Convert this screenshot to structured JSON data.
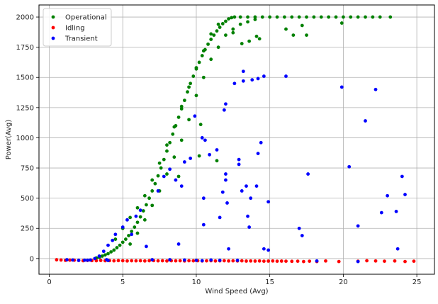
{
  "chart_data": {
    "type": "scatter",
    "title": "",
    "xlabel": "Wind Speed (Avg)",
    "ylabel": "Power(Avg)",
    "xlim": [
      -0.7,
      26.2
    ],
    "ylim": [
      -130,
      2100
    ],
    "xticks": [
      0,
      5,
      10,
      15,
      20,
      25
    ],
    "yticks": [
      0,
      250,
      500,
      750,
      1000,
      1250,
      1500,
      1750,
      2000
    ],
    "grid": true,
    "legend_position": "top-left",
    "series": [
      {
        "name": "Operational",
        "color": "#008000",
        "points": [
          [
            3.2,
            5
          ],
          [
            3.4,
            10
          ],
          [
            3.6,
            20
          ],
          [
            3.8,
            30
          ],
          [
            4.0,
            40
          ],
          [
            4.2,
            55
          ],
          [
            4.4,
            70
          ],
          [
            4.6,
            90
          ],
          [
            4.8,
            110
          ],
          [
            5.0,
            135
          ],
          [
            5.2,
            160
          ],
          [
            5.4,
            190
          ],
          [
            5.6,
            225
          ],
          [
            5.8,
            260
          ],
          [
            6.0,
            300
          ],
          [
            6.2,
            345
          ],
          [
            6.4,
            395
          ],
          [
            6.6,
            445
          ],
          [
            6.8,
            500
          ],
          [
            7.0,
            560
          ],
          [
            7.2,
            620
          ],
          [
            7.4,
            685
          ],
          [
            7.6,
            750
          ],
          [
            7.8,
            820
          ],
          [
            8.0,
            890
          ],
          [
            8.2,
            960
          ],
          [
            8.4,
            1030
          ],
          [
            8.6,
            1100
          ],
          [
            8.8,
            1170
          ],
          [
            9.0,
            1240
          ],
          [
            9.2,
            1310
          ],
          [
            9.4,
            1380
          ],
          [
            9.6,
            1450
          ],
          [
            9.8,
            1510
          ],
          [
            10.0,
            1570
          ],
          [
            10.2,
            1625
          ],
          [
            10.4,
            1680
          ],
          [
            10.6,
            1730
          ],
          [
            10.8,
            1775
          ],
          [
            11.0,
            1815
          ],
          [
            11.2,
            1850
          ],
          [
            11.4,
            1885
          ],
          [
            11.6,
            1915
          ],
          [
            11.8,
            1945
          ],
          [
            12.0,
            1965
          ],
          [
            12.2,
            1985
          ],
          [
            12.4,
            1995
          ],
          [
            12.6,
            2000
          ],
          [
            13.0,
            2000
          ],
          [
            13.5,
            2000
          ],
          [
            14.0,
            2000
          ],
          [
            14.5,
            2000
          ],
          [
            15.0,
            2000
          ],
          [
            15.5,
            2000
          ],
          [
            16.0,
            2000
          ],
          [
            16.5,
            2000
          ],
          [
            17.0,
            2000
          ],
          [
            17.5,
            2000
          ],
          [
            18.0,
            2000
          ],
          [
            18.5,
            2000
          ],
          [
            19.0,
            2000
          ],
          [
            19.5,
            2000
          ],
          [
            20.0,
            2000
          ],
          [
            20.5,
            2000
          ],
          [
            21.0,
            2000
          ],
          [
            21.5,
            2000
          ],
          [
            22.0,
            2000
          ],
          [
            22.5,
            2000
          ],
          [
            23.2,
            2000
          ],
          [
            5.5,
            120
          ],
          [
            6.0,
            210
          ],
          [
            6.5,
            320
          ],
          [
            7.0,
            440
          ],
          [
            7.5,
            560
          ],
          [
            8.0,
            700
          ],
          [
            8.5,
            840
          ],
          [
            9.0,
            980
          ],
          [
            9.5,
            1150
          ],
          [
            10.0,
            1350
          ],
          [
            10.5,
            1500
          ],
          [
            11.0,
            1650
          ],
          [
            11.5,
            1750
          ],
          [
            12.0,
            1850
          ],
          [
            12.5,
            1900
          ],
          [
            13.0,
            1940
          ],
          [
            13.5,
            1960
          ],
          [
            14.0,
            1980
          ],
          [
            4.5,
            160
          ],
          [
            5.0,
            250
          ],
          [
            5.5,
            340
          ],
          [
            6.0,
            420
          ],
          [
            6.5,
            520
          ],
          [
            7.0,
            650
          ],
          [
            7.5,
            790
          ],
          [
            8.0,
            940
          ],
          [
            8.5,
            1090
          ],
          [
            9.0,
            1260
          ],
          [
            9.5,
            1420
          ],
          [
            10.0,
            1580
          ],
          [
            10.5,
            1720
          ],
          [
            11.0,
            1860
          ],
          [
            11.5,
            1940
          ],
          [
            8.8,
            680
          ],
          [
            10.2,
            850
          ],
          [
            10.3,
            1110
          ],
          [
            11.4,
            810
          ],
          [
            12.5,
            1870
          ],
          [
            13.6,
            1800
          ],
          [
            14.1,
            1840
          ],
          [
            16.1,
            1900
          ],
          [
            16.6,
            1850
          ],
          [
            17.5,
            1850
          ],
          [
            17.2,
            1930
          ],
          [
            19.9,
            1950
          ],
          [
            14.3,
            1820
          ],
          [
            13.1,
            1780
          ]
        ]
      },
      {
        "name": "Idling",
        "color": "#ff0000",
        "points": [
          [
            0.5,
            -10
          ],
          [
            0.8,
            -12
          ],
          [
            1.1,
            -15
          ],
          [
            1.4,
            -13
          ],
          [
            1.7,
            -14
          ],
          [
            2.0,
            -15
          ],
          [
            2.3,
            -18
          ],
          [
            2.6,
            -16
          ],
          [
            2.9,
            -17
          ],
          [
            3.2,
            -18
          ],
          [
            3.5,
            -16
          ],
          [
            3.8,
            -18
          ],
          [
            4.1,
            -17
          ],
          [
            4.4,
            -19
          ],
          [
            4.7,
            -17
          ],
          [
            5.0,
            -18
          ],
          [
            5.3,
            -20
          ],
          [
            5.6,
            -18
          ],
          [
            5.9,
            -19
          ],
          [
            6.2,
            -18
          ],
          [
            6.5,
            -20
          ],
          [
            6.8,
            -18
          ],
          [
            7.1,
            -17
          ],
          [
            7.4,
            -19
          ],
          [
            7.7,
            -18
          ],
          [
            8.0,
            -20
          ],
          [
            8.3,
            -18
          ],
          [
            8.6,
            -19
          ],
          [
            8.9,
            -18
          ],
          [
            9.2,
            -20
          ],
          [
            9.5,
            -18
          ],
          [
            9.8,
            -19
          ],
          [
            10.1,
            -18
          ],
          [
            10.4,
            -20
          ],
          [
            10.7,
            -19
          ],
          [
            11.0,
            -18
          ],
          [
            11.3,
            -20
          ],
          [
            11.6,
            -19
          ],
          [
            11.9,
            -18
          ],
          [
            12.2,
            -20
          ],
          [
            12.5,
            -19
          ],
          [
            12.8,
            -20
          ],
          [
            13.1,
            -19
          ],
          [
            13.4,
            -21
          ],
          [
            13.7,
            -20
          ],
          [
            14.0,
            -21
          ],
          [
            14.3,
            -20
          ],
          [
            14.6,
            -22
          ],
          [
            14.9,
            -21
          ],
          [
            15.2,
            -20
          ],
          [
            15.5,
            -22
          ],
          [
            15.8,
            -21
          ],
          [
            16.1,
            -22
          ],
          [
            16.5,
            -23
          ],
          [
            16.9,
            -22
          ],
          [
            17.3,
            -25
          ],
          [
            17.7,
            -22
          ],
          [
            18.2,
            -25
          ],
          [
            18.8,
            -20
          ],
          [
            19.7,
            -25
          ],
          [
            21.0,
            -22
          ],
          [
            21.6,
            -18
          ],
          [
            22.2,
            -20
          ],
          [
            22.8,
            -22
          ],
          [
            23.5,
            -20
          ],
          [
            24.2,
            -25
          ],
          [
            24.8,
            -22
          ]
        ]
      },
      {
        "name": "Transient",
        "color": "#0000ff",
        "points": [
          [
            1.2,
            -10
          ],
          [
            1.6,
            -12
          ],
          [
            2.0,
            -15
          ],
          [
            2.4,
            -14
          ],
          [
            2.8,
            -12
          ],
          [
            3.1,
            0
          ],
          [
            3.4,
            20
          ],
          [
            3.7,
            60
          ],
          [
            4.0,
            110
          ],
          [
            4.3,
            150
          ],
          [
            3.9,
            -10
          ],
          [
            4.5,
            200
          ],
          [
            5.0,
            260
          ],
          [
            5.3,
            320
          ],
          [
            5.6,
            200
          ],
          [
            5.9,
            350
          ],
          [
            6.2,
            400
          ],
          [
            6.6,
            100
          ],
          [
            7.0,
            -10
          ],
          [
            7.4,
            560
          ],
          [
            7.8,
            680
          ],
          [
            8.2,
            740
          ],
          [
            8.6,
            650
          ],
          [
            9.0,
            600
          ],
          [
            9.2,
            800
          ],
          [
            9.6,
            830
          ],
          [
            9.9,
            1180
          ],
          [
            10.4,
            1000
          ],
          [
            10.5,
            500
          ],
          [
            10.6,
            980
          ],
          [
            10.9,
            860
          ],
          [
            11.4,
            900
          ],
          [
            11.6,
            340
          ],
          [
            11.8,
            550
          ],
          [
            11.9,
            1230
          ],
          [
            12.0,
            1280
          ],
          [
            12.1,
            460
          ],
          [
            12.6,
            1450
          ],
          [
            12.9,
            820
          ],
          [
            12.9,
            780
          ],
          [
            13.2,
            1470
          ],
          [
            13.2,
            1550
          ],
          [
            13.5,
            350
          ],
          [
            13.6,
            260
          ],
          [
            13.8,
            1480
          ],
          [
            14.2,
            1490
          ],
          [
            14.6,
            1510
          ],
          [
            14.2,
            870
          ],
          [
            14.4,
            960
          ],
          [
            14.9,
            470
          ],
          [
            13.1,
            560
          ],
          [
            13.4,
            600
          ],
          [
            14.1,
            600
          ],
          [
            13.7,
            500
          ],
          [
            12.0,
            650
          ],
          [
            12.0,
            700
          ],
          [
            10.5,
            280
          ],
          [
            8.8,
            120
          ],
          [
            8.2,
            -10
          ],
          [
            9.2,
            -12
          ],
          [
            10.0,
            -15
          ],
          [
            11.0,
            -12
          ],
          [
            12.2,
            80
          ],
          [
            14.6,
            80
          ],
          [
            14.9,
            70
          ],
          [
            16.1,
            1510
          ],
          [
            17.0,
            250
          ],
          [
            17.2,
            190
          ],
          [
            17.6,
            700
          ],
          [
            18.2,
            -20
          ],
          [
            19.9,
            1420
          ],
          [
            20.4,
            760
          ],
          [
            21.0,
            270
          ],
          [
            21.0,
            -25
          ],
          [
            21.5,
            1140
          ],
          [
            22.2,
            1400
          ],
          [
            22.6,
            380
          ],
          [
            23.0,
            520
          ],
          [
            23.6,
            390
          ],
          [
            23.7,
            80
          ],
          [
            24.0,
            680
          ],
          [
            24.2,
            530
          ],
          [
            12.8,
            -15
          ],
          [
            11.6,
            -15
          ],
          [
            10.4,
            -18
          ],
          [
            4.0,
            -16
          ],
          [
            2.6,
            -14
          ]
        ]
      }
    ]
  }
}
